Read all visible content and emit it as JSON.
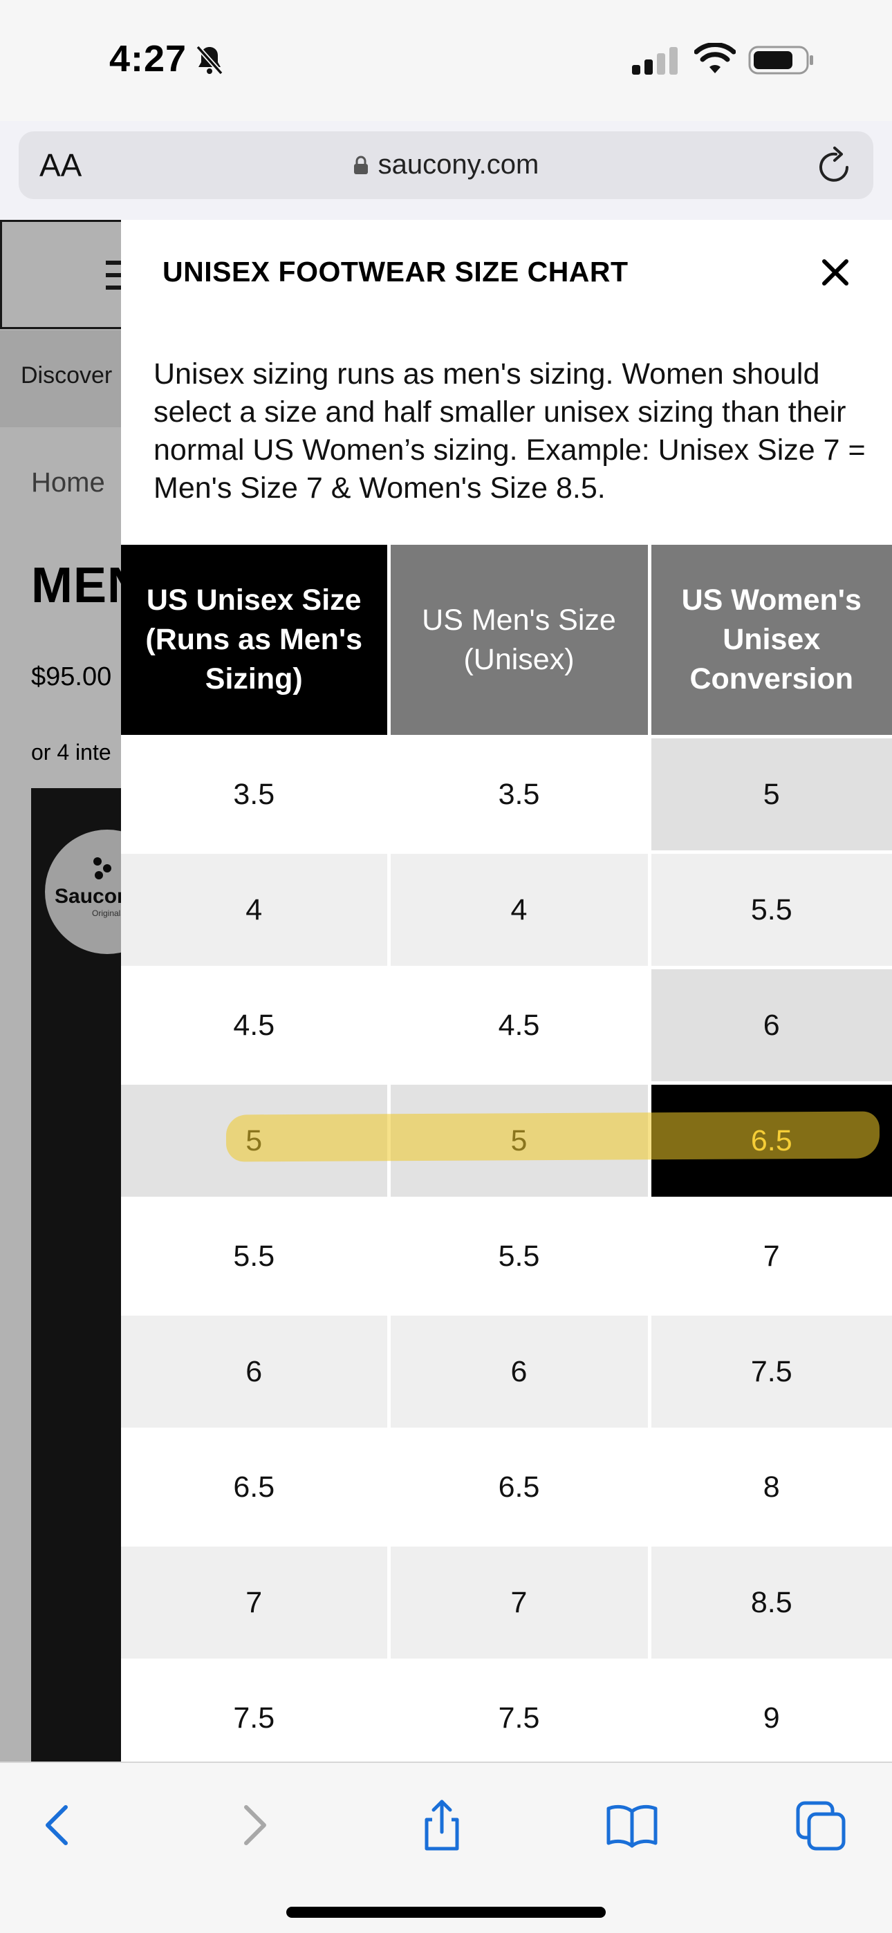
{
  "status_bar": {
    "time": "4:27"
  },
  "browser": {
    "text_size_button": "AA",
    "url": "saucony.com"
  },
  "background_page": {
    "nav_text": "Discover",
    "breadcrumb": "Home",
    "title_fragment": "MEN",
    "price_fragment": "$95.00",
    "installments_fragment": "or 4 inte",
    "logo_text": "Saucony",
    "logo_subtext": "Originals"
  },
  "modal": {
    "title": "UNISEX FOOTWEAR SIZE CHART",
    "description": "Unisex sizing runs as men's sizing. Women should select a size and half smaller unisex sizing than their normal US Women’s sizing. Example: Unisex Size 7 = Men's Size 7 & Women's Size 8.5.",
    "headers": [
      "US Unisex Size (Runs as Men's Sizing)",
      "US Men's Size (Unisex)",
      "US Women's Unisex Conversion"
    ],
    "rows": [
      [
        "3.5",
        "3.5",
        "5"
      ],
      [
        "4",
        "4",
        "5.5"
      ],
      [
        "4.5",
        "4.5",
        "6"
      ],
      [
        "5",
        "5",
        "6.5"
      ],
      [
        "5.5",
        "5.5",
        "7"
      ],
      [
        "6",
        "6",
        "7.5"
      ],
      [
        "6.5",
        "6.5",
        "8"
      ],
      [
        "7",
        "7",
        "8.5"
      ],
      [
        "7.5",
        "7.5",
        "9"
      ]
    ],
    "highlighted_row": 3
  },
  "colors": {
    "header_black": "#000000",
    "header_gray": "#7a7a7a",
    "highlight": "#efc828",
    "link_blue": "#1a6fd8"
  }
}
